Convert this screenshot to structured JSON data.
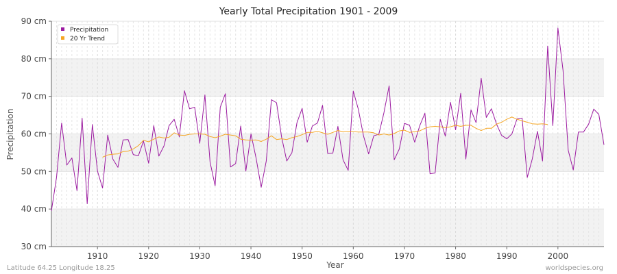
{
  "chart_data": {
    "type": "line",
    "title": "Yearly Total Precipitation 1901 - 2009",
    "xlabel": "Year",
    "ylabel": "Precipitation",
    "xlim": [
      1901,
      2009
    ],
    "ylim": [
      30,
      90
    ],
    "x_ticks": [
      1910,
      1920,
      1930,
      1940,
      1950,
      1960,
      1970,
      1980,
      1990,
      2000
    ],
    "y_ticks": [
      {
        "value": 30,
        "label": "30 cm"
      },
      {
        "value": 40,
        "label": "40 cm"
      },
      {
        "value": 50,
        "label": "50 cm"
      },
      {
        "value": 60,
        "label": "60 cm"
      },
      {
        "value": 70,
        "label": "70 cm"
      },
      {
        "value": 80,
        "label": "80 cm"
      },
      {
        "value": 90,
        "label": "90 cm"
      }
    ],
    "grid": true,
    "legend_position": "top-left",
    "series": [
      {
        "name": "Precipitation",
        "color": "#9b1aa0",
        "x_start": 1901,
        "values": [
          39.5,
          48.5,
          62.9,
          51.7,
          53.6,
          44.9,
          64.2,
          41.4,
          62.5,
          50.1,
          45.6,
          59.7,
          53.3,
          51.1,
          58.4,
          58.5,
          54.5,
          54.2,
          58.1,
          52.2,
          62.2,
          54.1,
          56.8,
          62.2,
          63.9,
          59.2,
          71.5,
          66.7,
          67.1,
          57.5,
          70.4,
          52.5,
          46.2,
          67.1,
          70.7,
          51.2,
          52.1,
          62.1,
          50.1,
          60.0,
          53.6,
          45.8,
          52.8,
          69.1,
          68.3,
          59.1,
          52.8,
          55.0,
          63.0,
          66.8,
          57.8,
          62.1,
          62.9,
          67.6,
          54.8,
          54.9,
          62.0,
          53.1,
          50.3,
          71.4,
          66.5,
          59.5,
          54.7,
          59.5,
          59.9,
          65.7,
          72.8,
          53.1,
          56.0,
          62.8,
          62.3,
          57.8,
          62.2,
          65.5,
          49.4,
          49.6,
          63.9,
          59.4,
          68.4,
          61.1,
          70.8,
          53.3,
          66.4,
          63.0,
          74.8,
          64.4,
          66.7,
          62.6,
          59.6,
          58.7,
          60.0,
          64.0,
          64.2,
          48.4,
          53.4,
          60.7,
          52.8,
          83.4,
          62.2,
          88.2,
          76.9,
          55.7,
          50.4,
          60.5,
          60.5,
          62.6,
          66.6,
          65.2,
          57.1
        ]
      },
      {
        "name": "20 Yr Trend",
        "color": "#f5a623",
        "x_start": 1911,
        "values": [
          53.8,
          54.4,
          54.6,
          54.7,
          55.3,
          55.4,
          56.0,
          56.9,
          58.3,
          57.9,
          58.6,
          59.2,
          58.9,
          59.1,
          60.3,
          59.7,
          59.6,
          59.9,
          60.0,
          60.0,
          59.9,
          59.3,
          59.0,
          59.4,
          59.9,
          59.7,
          59.5,
          58.6,
          58.4,
          58.3,
          58.4,
          58.0,
          58.6,
          59.5,
          58.5,
          58.7,
          58.5,
          59.0,
          59.3,
          59.8,
          60.4,
          60.4,
          60.7,
          60.3,
          59.9,
          60.4,
          60.9,
          60.6,
          60.7,
          60.6,
          60.5,
          60.5,
          60.5,
          60.3,
          59.7,
          60.0,
          59.7,
          60.1,
          60.8,
          61.0,
          60.4,
          60.6,
          60.8,
          61.5,
          61.9,
          62.0,
          61.9,
          61.7,
          61.9,
          62.3,
          62.0,
          62.3,
          62.3,
          61.5,
          60.9,
          61.5,
          61.5,
          62.6,
          63.1,
          63.9,
          64.5,
          63.9,
          63.5,
          63.1,
          62.7,
          62.6,
          62.7,
          62.5
        ]
      }
    ]
  },
  "footer": {
    "left": "Latitude 64.25 Longitude 18.25",
    "right": "worldspecies.org"
  }
}
